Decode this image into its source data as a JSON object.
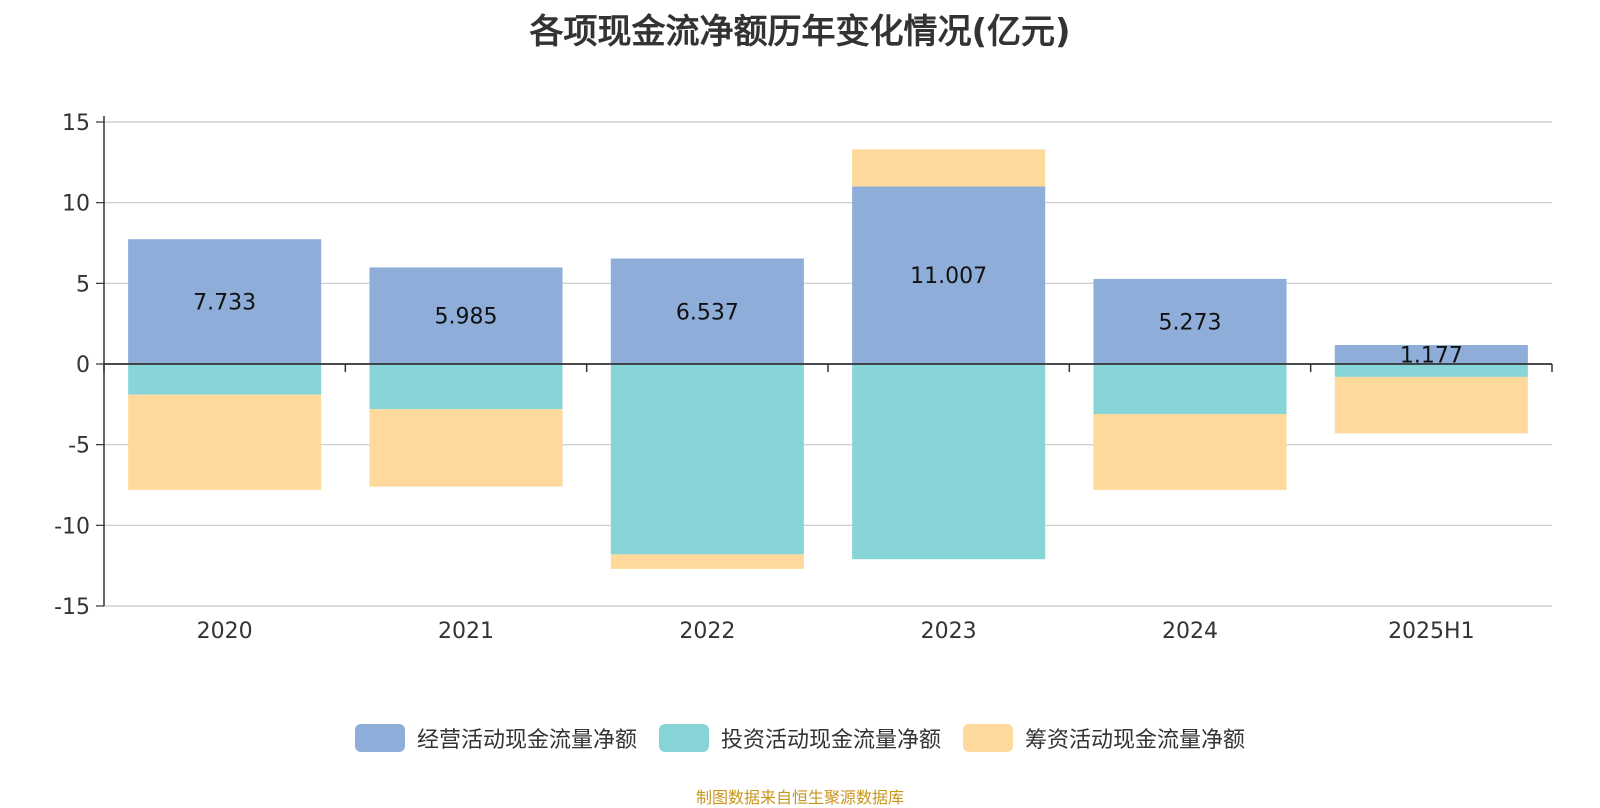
{
  "chart_data": {
    "type": "bar",
    "stacked": true,
    "title": "各项现金流净额历年变化情况(亿元)",
    "categories": [
      "2020",
      "2021",
      "2022",
      "2023",
      "2024",
      "2025H1"
    ],
    "series": [
      {
        "name": "经营活动现金流量净额",
        "color": "#8eadd9",
        "values": [
          7.733,
          5.985,
          6.537,
          11.007,
          5.273,
          1.177
        ],
        "data_labels": [
          "7.733",
          "5.985",
          "6.537",
          "11.007",
          "5.273",
          "1.177"
        ]
      },
      {
        "name": "投资活动现金流量净额",
        "color": "#88d5d8",
        "values": [
          -1.9,
          -2.8,
          -11.8,
          -12.1,
          -3.1,
          -0.8
        ]
      },
      {
        "name": "筹资活动现金流量净额",
        "color": "#fed99b",
        "values": [
          -5.9,
          -4.8,
          -0.9,
          2.3,
          -4.7,
          -3.5
        ]
      }
    ],
    "y_ticks": [
      "15",
      "10",
      "5",
      "0",
      "-5",
      "-10",
      "-15"
    ],
    "ylim": [
      -15,
      15
    ],
    "grid": true,
    "legend_position": "bottom-center"
  },
  "source_note": "制图数据来自恒生聚源数据库"
}
